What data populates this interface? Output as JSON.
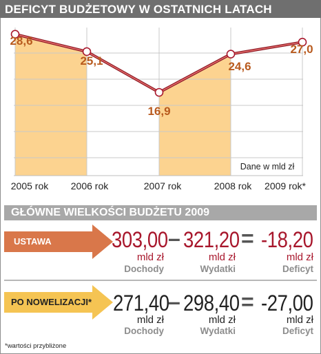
{
  "title": "DEFICYT BUDŻETOWY W OSTATNICH LATACH",
  "chart_data": {
    "type": "line",
    "categories": [
      "2005 rok",
      "2006 rok",
      "2007 rok",
      "2008 rok",
      "2009 rok*"
    ],
    "values": [
      28.6,
      25.1,
      16.9,
      24.6,
      27.0
    ],
    "value_labels": [
      "28,6",
      "25,1",
      "16,9",
      "24,6",
      "27,0"
    ],
    "highlighted_columns": [
      0,
      2
    ],
    "note": "Dane w mld zł",
    "grid": true,
    "colors": {
      "line": "#a8172c",
      "marker_fill": "#ffffff",
      "area": "#fcd390",
      "label": "#b85a1e"
    }
  },
  "section_title": "GŁÓWNE WIELKOŚCI BUDŻETU 2009",
  "rows": [
    {
      "label": "USTAWA",
      "dochody": "303,00",
      "wydatki": "321,20",
      "deficyt": "-18,20",
      "unit": "mld zł",
      "cap_dochody": "Dochody",
      "cap_wydatki": "Wydatki",
      "cap_deficyt": "Deficyt",
      "minus_sign": "–",
      "equals_sign": "="
    },
    {
      "label": "PO NOWELIZACJI*",
      "dochody": "271,40",
      "wydatki": "298,40",
      "deficyt": "-27,00",
      "unit": "mld zł",
      "cap_dochody": "Dochody",
      "cap_wydatki": "Wydatki",
      "cap_deficyt": "Deficyt",
      "minus_sign": "–",
      "equals_sign": "="
    }
  ],
  "footnote": "*wartości przybliżone",
  "colors": {
    "accent_red": "#a8172c",
    "arrow_orange": "#d9774a",
    "arrow_yellow": "#f5c453",
    "title_bg": "#6f6f6f",
    "section_bg": "#a8a8a8"
  }
}
